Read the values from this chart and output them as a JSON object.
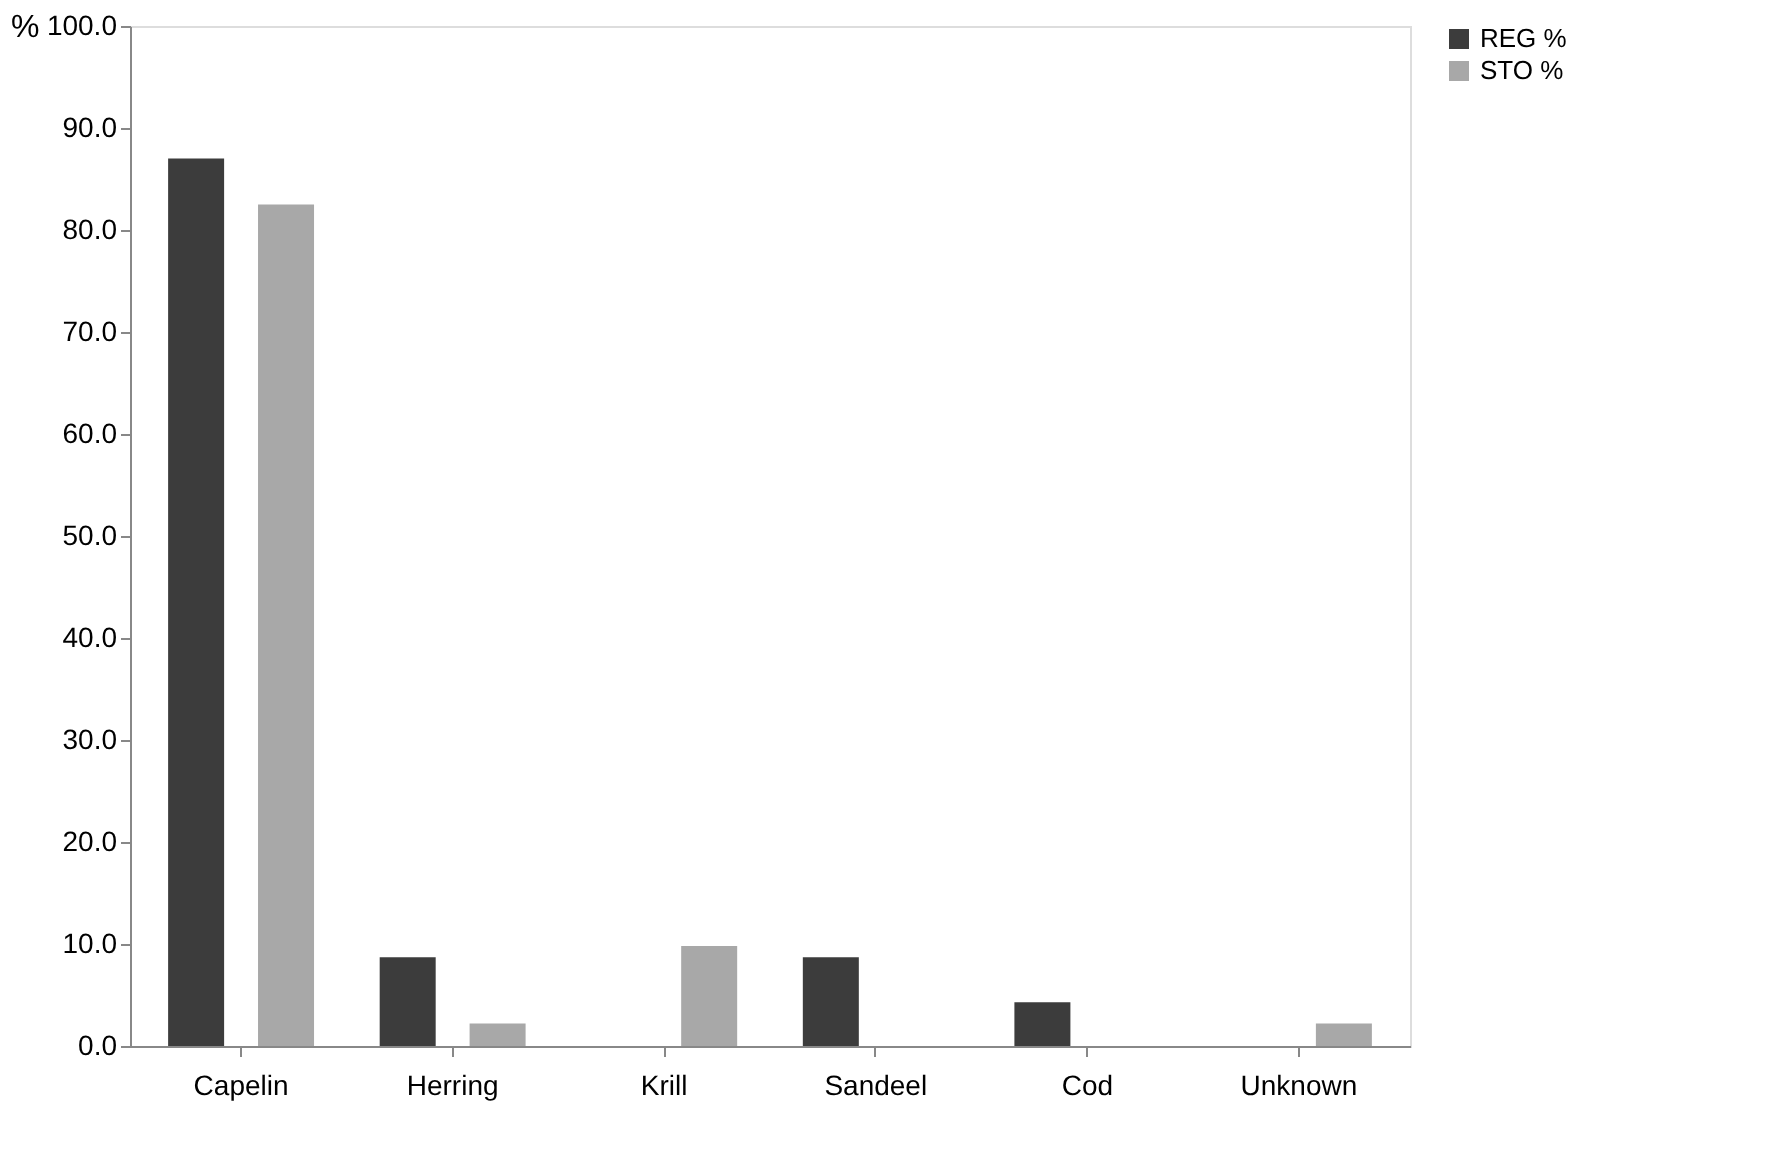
{
  "chart_data": {
    "type": "bar",
    "ylabel": "%",
    "categories": [
      "Capelin",
      "Herring",
      "Krill",
      "Sandeel",
      "Cod",
      "Unknown"
    ],
    "series": [
      {
        "name": "REG %",
        "color": "#3c3c3c",
        "values": [
          87.0,
          8.7,
          0.0,
          8.7,
          4.3,
          0.0
        ]
      },
      {
        "name": "STO %",
        "color": "#a8a8a8",
        "values": [
          82.5,
          2.2,
          9.8,
          0.0,
          0.0,
          2.2
        ]
      }
    ],
    "ylim": [
      0,
      100
    ],
    "yticks": [
      {
        "value": 0,
        "label": "0.0"
      },
      {
        "value": 10,
        "label": "10.0"
      },
      {
        "value": 20,
        "label": "20.0"
      },
      {
        "value": 30,
        "label": "30.0"
      },
      {
        "value": 40,
        "label": "40.0"
      },
      {
        "value": 50,
        "label": "50.0"
      },
      {
        "value": 60,
        "label": "60.0"
      },
      {
        "value": 70,
        "label": "70.0"
      },
      {
        "value": 80,
        "label": "80.0"
      },
      {
        "value": 90,
        "label": "90.0"
      },
      {
        "value": 100,
        "label": "100.0"
      }
    ],
    "grid": false,
    "legend": "right"
  }
}
